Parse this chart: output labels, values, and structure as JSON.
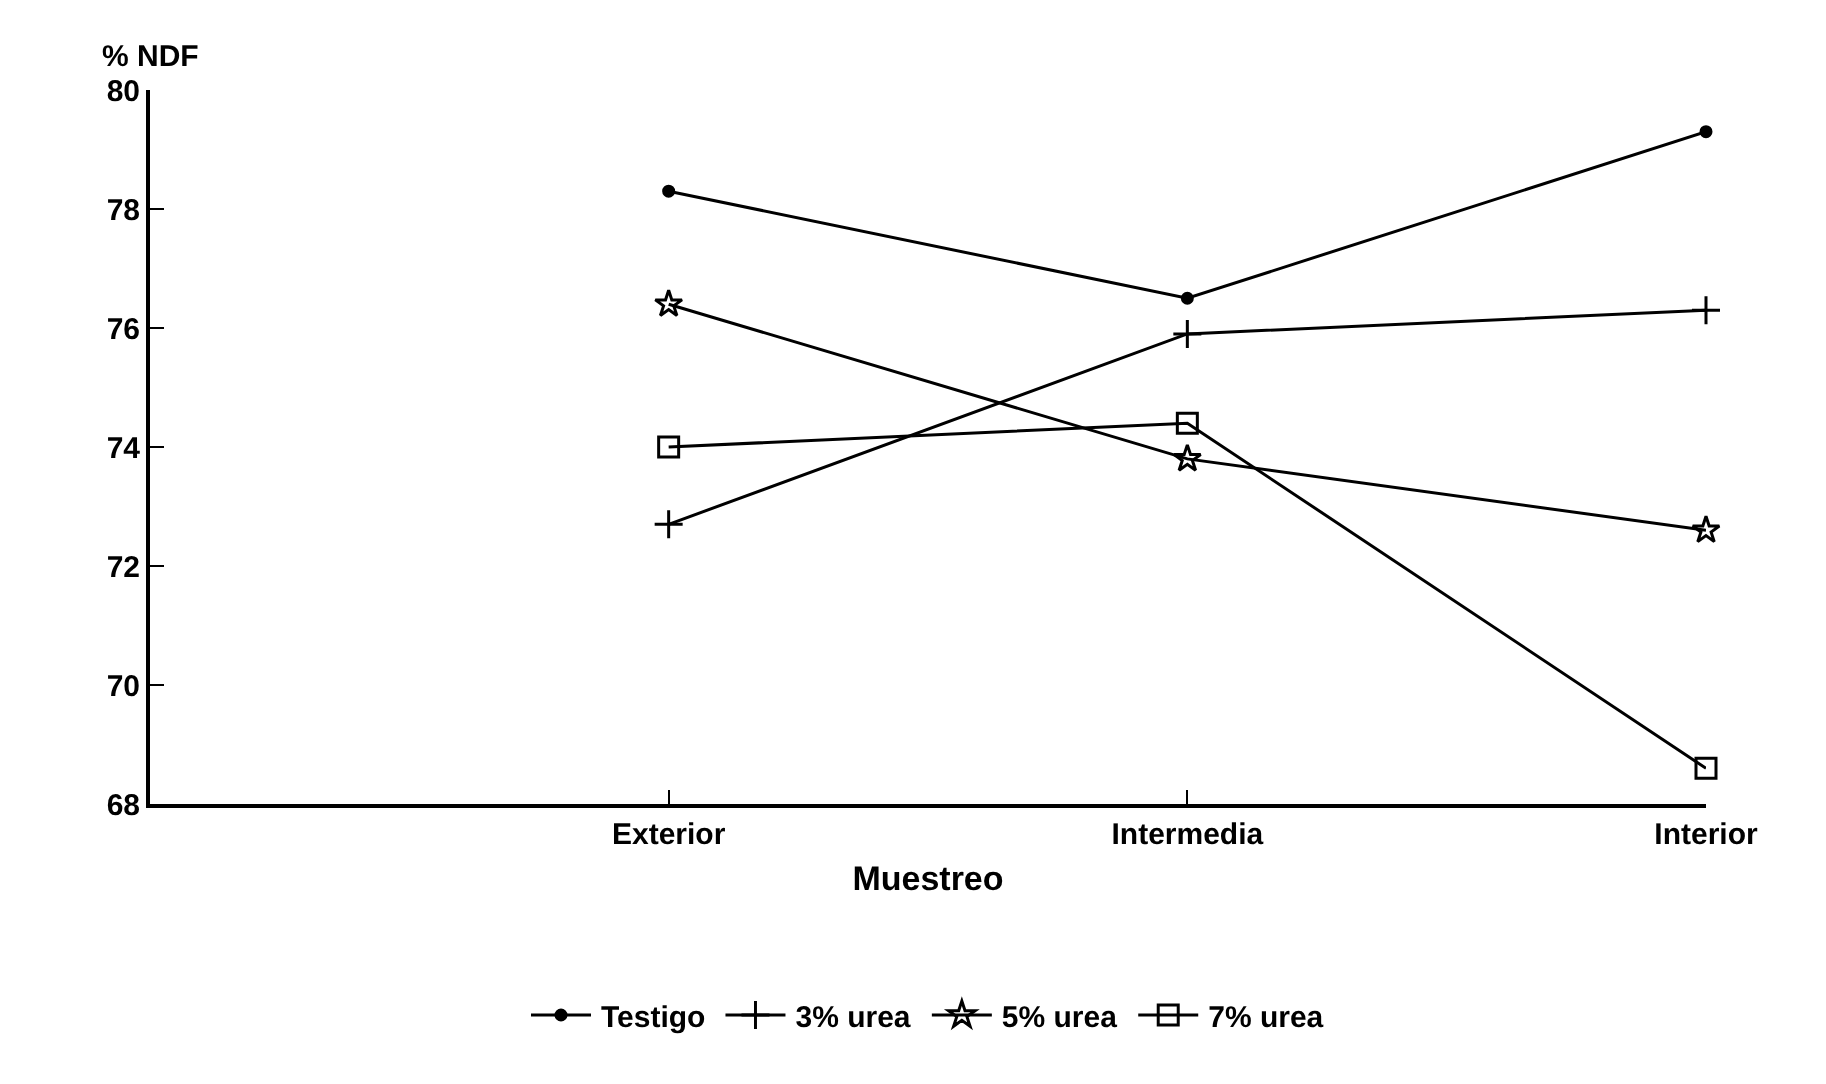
{
  "chart_data": {
    "type": "line",
    "ylabel": "% NDF",
    "xlabel": "Muestreo",
    "categories": [
      null,
      "Exterior",
      "Intermedia",
      "Interior"
    ],
    "ylim": [
      68,
      80
    ],
    "yticks": [
      68,
      70,
      72,
      74,
      76,
      78,
      80
    ],
    "grid": false,
    "legend": "bottom",
    "line_style": "solid",
    "series": [
      {
        "name": "Testigo",
        "color": "#000000",
        "marker": "circle",
        "values": [
          null,
          78.3,
          76.5,
          79.3
        ]
      },
      {
        "name": "3% urea",
        "color": "#000000",
        "marker": "cross",
        "values": [
          null,
          72.7,
          75.9,
          76.3
        ]
      },
      {
        "name": "5% urea",
        "color": "#000000",
        "marker": "star",
        "values": [
          null,
          76.4,
          73.8,
          72.6
        ]
      },
      {
        "name": "7% urea",
        "color": "#000000",
        "marker": "square",
        "values": [
          null,
          74.0,
          74.4,
          68.6
        ]
      }
    ]
  }
}
